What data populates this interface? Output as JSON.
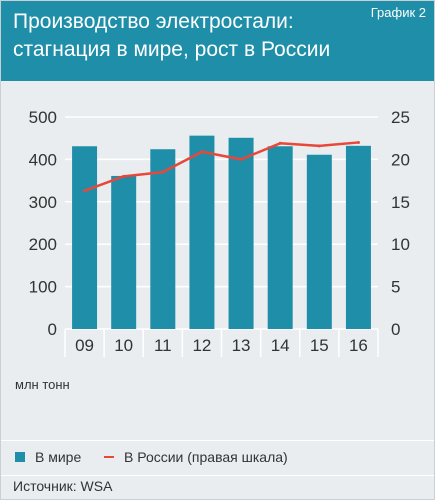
{
  "header": {
    "title_line1": "Производство электростали:",
    "title_line2": "стагнация в мире, рост в России",
    "graph_label": "График 2"
  },
  "chart_data": {
    "type": "bar",
    "categories": [
      "09",
      "10",
      "11",
      "12",
      "13",
      "14",
      "15",
      "16"
    ],
    "series": [
      {
        "name": "В мире",
        "type": "bar",
        "axis": "left",
        "color": "#1f8fa9",
        "values": [
          431,
          361,
          424,
          456,
          451,
          431,
          411,
          432
        ]
      },
      {
        "name": "В России (правая шкала)",
        "type": "line",
        "axis": "right",
        "color": "#e8473a",
        "values": [
          16.3,
          18.0,
          18.5,
          20.9,
          20.0,
          21.9,
          21.6,
          22.0
        ]
      }
    ],
    "ylim_left": [
      0,
      500
    ],
    "yticks_left": [
      "0",
      "100",
      "200",
      "300",
      "400",
      "500"
    ],
    "ylim_right": [
      0,
      25
    ],
    "yticks_right": [
      "0",
      "5",
      "10",
      "15",
      "20",
      "25"
    ],
    "unit_label": "млн тонн",
    "grid": true,
    "legend_position": "bottom"
  },
  "source": "Источник: WSA"
}
